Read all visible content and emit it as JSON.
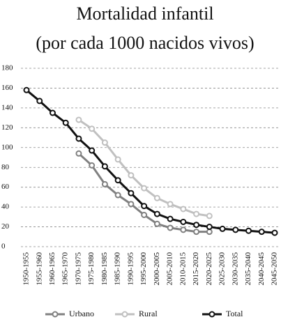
{
  "chart_data": {
    "type": "line",
    "title": "Mortalidad infantil",
    "subtitle": "(por cada 1000 nacidos vivos)",
    "categories": [
      "1950-1955",
      "1955-1960",
      "1960-1965",
      "1965-1970",
      "1970-1975",
      "1975-1980",
      "1980-1985",
      "1985-1990",
      "1990-1995",
      "1995-2000",
      "2000-2005",
      "2005-2010",
      "2010-2015",
      "2015-2020",
      "2020-2025",
      "2025-2030",
      "2030-2035",
      "2035-2040",
      "2040-2045",
      "2045-2050"
    ],
    "series": [
      {
        "name": "Urbano",
        "color": "#808080",
        "values": [
          null,
          null,
          null,
          null,
          94,
          82,
          63,
          52,
          43,
          32,
          23,
          19,
          17,
          15,
          15,
          null,
          null,
          null,
          null,
          null
        ]
      },
      {
        "name": "Rural",
        "color": "#c0c0c0",
        "values": [
          null,
          null,
          null,
          null,
          128,
          119,
          105,
          88,
          72,
          59,
          49,
          43,
          38,
          33,
          31,
          null,
          null,
          null,
          null,
          null
        ]
      },
      {
        "name": "Total",
        "color": "#111111",
        "values": [
          158,
          147,
          135,
          125,
          109,
          97,
          81,
          67,
          54,
          41,
          33,
          28,
          25,
          22,
          20,
          18,
          17,
          16,
          15,
          14
        ]
      }
    ],
    "ylim": [
      0,
      180
    ],
    "yticks": [
      0,
      20,
      40,
      60,
      80,
      100,
      120,
      140,
      160,
      180
    ],
    "grid": true
  }
}
